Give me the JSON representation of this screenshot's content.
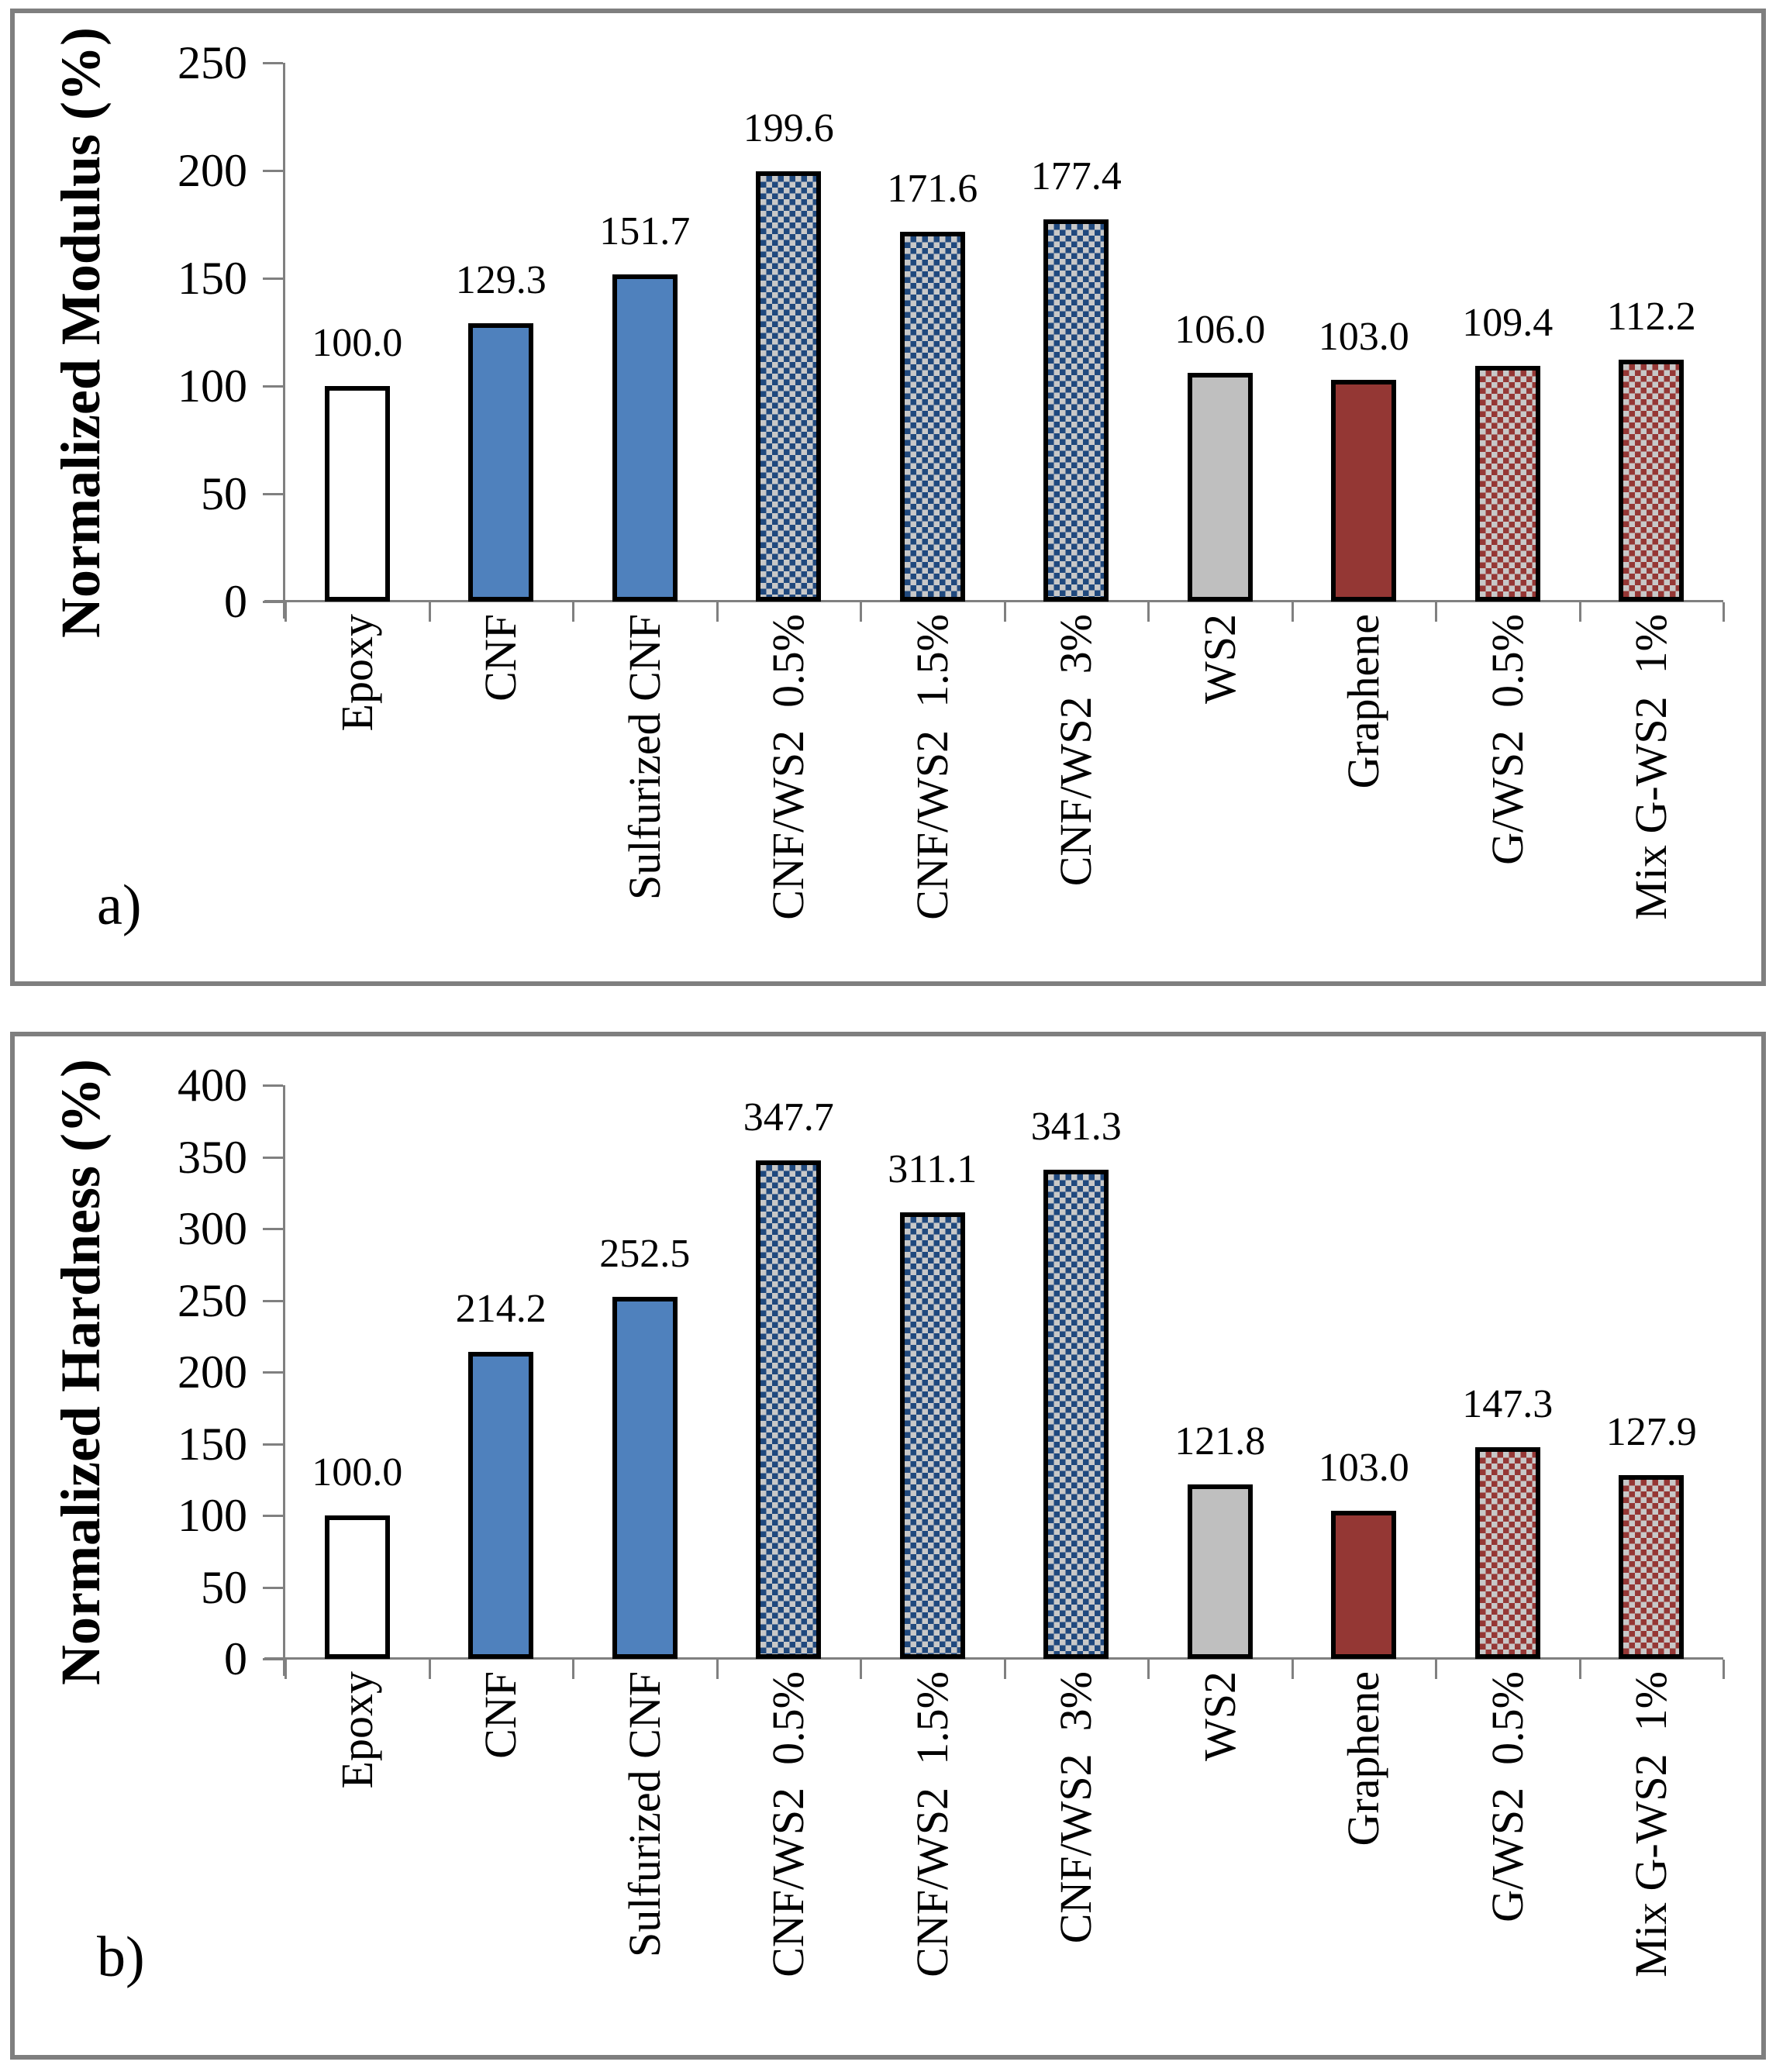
{
  "figure": {
    "panel_a_label": "a)",
    "panel_b_label": "b)"
  },
  "styles": {
    "bar_blue": "#4f81bd",
    "bar_white": "#ffffff",
    "bar_gray": "#bfbfbf",
    "bar_dark_red": "#943734",
    "check_blue": "#20497e",
    "check_red": "#953735",
    "check_bg": "#c8c8c8",
    "bar_border": "#000000",
    "axis_color": "#808080",
    "panel_border": "#7f7f7f"
  },
  "chart_data": [
    {
      "id": "a",
      "type": "bar",
      "title": "",
      "xlabel": "",
      "ylabel": "Normalized Modulus (%)",
      "ylim": [
        0,
        250
      ],
      "ytick_step": 50,
      "ytick_labels": [
        "0",
        "50",
        "100",
        "150",
        "200",
        "250"
      ],
      "grid": false,
      "legend": "none",
      "panel_label": "a)",
      "categories": [
        "Epoxy",
        "CNF",
        "Sulfurized CNF",
        "CNF/WS2  0.5%",
        "CNF/WS2  1.5%",
        "CNF/WS2  3%",
        "WS2",
        "Graphene",
        "G/WS2  0.5%",
        "Mix G-WS2  1%"
      ],
      "values": [
        100.0,
        129.3,
        151.7,
        199.6,
        171.6,
        177.4,
        106.0,
        103.0,
        109.4,
        112.2
      ],
      "value_labels": [
        "100.0",
        "129.3",
        "151.7",
        "199.6",
        "171.6",
        "177.4",
        "106.0",
        "103.0",
        "109.4",
        "112.2"
      ],
      "bar_styles": [
        "white",
        "blue",
        "blue",
        "blue-check",
        "blue-check",
        "blue-check",
        "gray",
        "dark-red",
        "red-check",
        "red-check"
      ]
    },
    {
      "id": "b",
      "type": "bar",
      "title": "",
      "xlabel": "",
      "ylabel": "Normalized Hardness (%)",
      "ylim": [
        0,
        400
      ],
      "ytick_step": 50,
      "ytick_labels": [
        "0",
        "50",
        "100",
        "150",
        "200",
        "250",
        "300",
        "350",
        "400"
      ],
      "grid": false,
      "legend": "none",
      "panel_label": "b)",
      "categories": [
        "Epoxy",
        "CNF",
        "Sulfurized CNF",
        "CNF/WS2  0.5%",
        "CNF/WS2  1.5%",
        "CNF/WS2  3%",
        "WS2",
        "Graphene",
        "G/WS2  0.5%",
        "Mix G-WS2  1%"
      ],
      "values": [
        100.0,
        214.2,
        252.5,
        347.7,
        311.1,
        341.3,
        121.8,
        103.0,
        147.3,
        127.9
      ],
      "value_labels": [
        "100.0",
        "214.2",
        "252.5",
        "347.7",
        "311.1",
        "341.3",
        "121.8",
        "103.0",
        "147.3",
        "127.9"
      ],
      "bar_styles": [
        "white",
        "blue",
        "blue",
        "blue-check",
        "blue-check",
        "blue-check",
        "gray",
        "dark-red",
        "red-check",
        "red-check"
      ]
    }
  ]
}
